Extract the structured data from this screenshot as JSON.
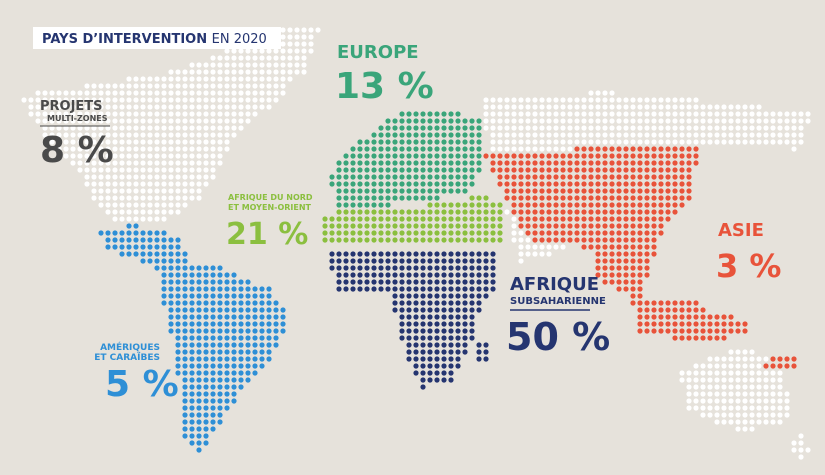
{
  "title": {
    "bold": "PAYS D’INTERVENTION",
    "light": "EN 2020"
  },
  "regions": [
    {
      "name": "EUROPE",
      "value": "13 %",
      "color": "#3aa57a"
    },
    {
      "name": "PROJETS",
      "subname": "MULTI-ZONES",
      "value": "8 %",
      "color": "#4a4a4a"
    },
    {
      "name": "AFRIQUE DU NORD",
      "subname": "ET MOYEN-ORIENT",
      "value": "21 %",
      "color": "#8bbf3f"
    },
    {
      "name": "AMÉRIQUES",
      "subname": "ET CARAÏBES",
      "value": "5 %",
      "color": "#2e8fd6"
    },
    {
      "name": "AFRIQUE",
      "subname": "SUBSAHARIENNE",
      "value": "50 %",
      "color": "#253570"
    },
    {
      "name": "ASIE",
      "value": "3 %",
      "color": "#e8533a"
    }
  ]
}
